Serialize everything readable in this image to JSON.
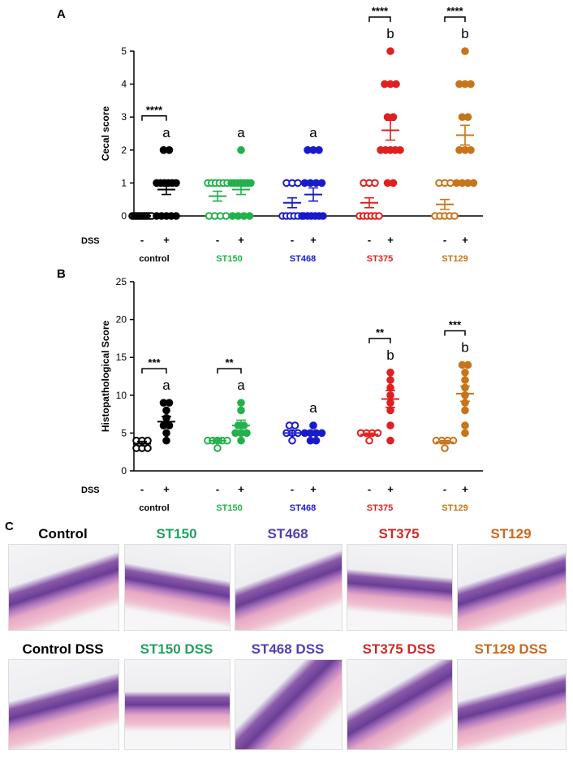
{
  "chart_data": [
    {
      "type": "dot",
      "panel": "A",
      "y_label": "Cecal score",
      "x_label": "DSS",
      "dss_labels": [
        "-",
        "+"
      ],
      "ylim": [
        0,
        5
      ],
      "yticks": [
        0,
        1,
        2,
        3,
        4,
        5
      ],
      "series": [
        {
          "name": "control",
          "color": "#000000",
          "significance": "****",
          "minus": {
            "values": [
              0,
              0,
              0,
              0,
              0,
              0,
              0,
              0,
              0,
              0,
              0,
              0
            ],
            "mean": 0,
            "sem": 0
          },
          "plus": {
            "values": [
              0,
              0,
              0,
              0,
              0,
              1,
              1,
              1,
              1,
              1,
              1,
              2,
              2
            ],
            "mean": 0.8,
            "sem": 0.15,
            "letter": "a"
          }
        },
        {
          "name": "ST150",
          "color": "#22b14c",
          "minus": {
            "values": [
              0,
              0,
              0,
              0,
              1,
              1,
              1,
              1,
              1,
              1
            ],
            "mean": 0.6,
            "sem": 0.15
          },
          "plus": {
            "values": [
              0,
              0,
              0,
              0,
              1,
              1,
              1,
              1,
              1,
              1,
              1,
              2
            ],
            "mean": 0.8,
            "sem": 0.15,
            "letter": "a"
          }
        },
        {
          "name": "ST468",
          "color": "#1a1acd",
          "minus": {
            "values": [
              0,
              0,
              0,
              0,
              0,
              0,
              1,
              1,
              1
            ],
            "mean": 0.4,
            "sem": 0.15
          },
          "plus": {
            "values": [
              0,
              0,
              0,
              0,
              0,
              0,
              1,
              1,
              1,
              1,
              2,
              2,
              2
            ],
            "mean": 0.65,
            "sem": 0.2,
            "letter": "a"
          }
        },
        {
          "name": "ST375",
          "color": "#e02020",
          "significance": "****",
          "minus": {
            "values": [
              0,
              0,
              0,
              0,
              0,
              0,
              1,
              1,
              1
            ],
            "mean": 0.4,
            "sem": 0.15
          },
          "plus": {
            "values": [
              1,
              1,
              2,
              2,
              2,
              2,
              2,
              3,
              3,
              4,
              4,
              4,
              5
            ],
            "mean": 2.6,
            "sem": 0.3,
            "letter": "b"
          }
        },
        {
          "name": "ST129",
          "color": "#c8741a",
          "significance": "****",
          "minus": {
            "values": [
              0,
              0,
              0,
              0,
              0,
              1,
              1,
              1
            ],
            "mean": 0.35,
            "sem": 0.15
          },
          "plus": {
            "values": [
              1,
              1,
              1,
              1,
              2,
              2,
              2,
              3,
              3,
              4,
              4,
              4,
              5
            ],
            "mean": 2.45,
            "sem": 0.3,
            "letter": "b"
          }
        }
      ]
    },
    {
      "type": "dot",
      "panel": "B",
      "y_label": "Histopathological Score",
      "x_label": "DSS",
      "dss_labels": [
        "-",
        "+"
      ],
      "ylim": [
        0,
        25
      ],
      "yticks": [
        0,
        5,
        10,
        15,
        20,
        25
      ],
      "series": [
        {
          "name": "control",
          "color": "#000000",
          "significance": "***",
          "minus": {
            "values": [
              3,
              3,
              3,
              4,
              4,
              4
            ],
            "mean": 3.6,
            "sem": 0.3
          },
          "plus": {
            "values": [
              4,
              5,
              6,
              6,
              7,
              8,
              9,
              9
            ],
            "mean": 6.5,
            "sem": 0.7,
            "letter": "a"
          }
        },
        {
          "name": "ST150",
          "color": "#22b14c",
          "significance": "**",
          "minus": {
            "values": [
              3,
              4,
              4,
              4,
              4,
              4
            ],
            "mean": 4,
            "sem": 0.2
          },
          "plus": {
            "values": [
              4,
              5,
              5,
              5,
              6,
              6,
              8,
              9
            ],
            "mean": 6,
            "sem": 0.7,
            "letter": "a"
          }
        },
        {
          "name": "ST468",
          "color": "#1a1acd",
          "minus": {
            "values": [
              4,
              5,
              5,
              5,
              6,
              6
            ],
            "mean": 5,
            "sem": 0.3
          },
          "plus": {
            "values": [
              4,
              4,
              5,
              5,
              5,
              5,
              6
            ],
            "mean": 5,
            "sem": 0.3,
            "letter": "a"
          }
        },
        {
          "name": "ST375",
          "color": "#e02020",
          "significance": "**",
          "minus": {
            "values": [
              4,
              5,
              5,
              5,
              5
            ],
            "mean": 4.8,
            "sem": 0.2
          },
          "plus": {
            "values": [
              4,
              6,
              8,
              9,
              10,
              11,
              12,
              13
            ],
            "mean": 9.5,
            "sem": 1.1,
            "letter": "b"
          }
        },
        {
          "name": "ST129",
          "color": "#c8741a",
          "significance": "***",
          "minus": {
            "values": [
              3,
              4,
              4,
              4,
              4
            ],
            "mean": 3.8,
            "sem": 0.2
          },
          "plus": {
            "values": [
              5,
              6,
              8,
              9,
              10,
              11,
              12,
              13,
              14,
              14
            ],
            "mean": 10.2,
            "sem": 1,
            "letter": "b"
          }
        }
      ]
    }
  ],
  "panel_c": {
    "label": "C",
    "rows": [
      [
        {
          "text": "Control",
          "color": "#000000"
        },
        {
          "text": "ST150",
          "color": "#22a060"
        },
        {
          "text": "ST468",
          "color": "#5040b0"
        },
        {
          "text": "ST375",
          "color": "#d02828"
        },
        {
          "text": "ST129",
          "color": "#c86a20"
        }
      ],
      [
        {
          "text": "Control DSS",
          "color": "#000000"
        },
        {
          "text": "ST150 DSS",
          "color": "#22a060"
        },
        {
          "text": "ST468 DSS",
          "color": "#5040b0"
        },
        {
          "text": "ST375 DSS",
          "color": "#d02828"
        },
        {
          "text": "ST129 DSS",
          "color": "#c86a20"
        }
      ]
    ]
  }
}
